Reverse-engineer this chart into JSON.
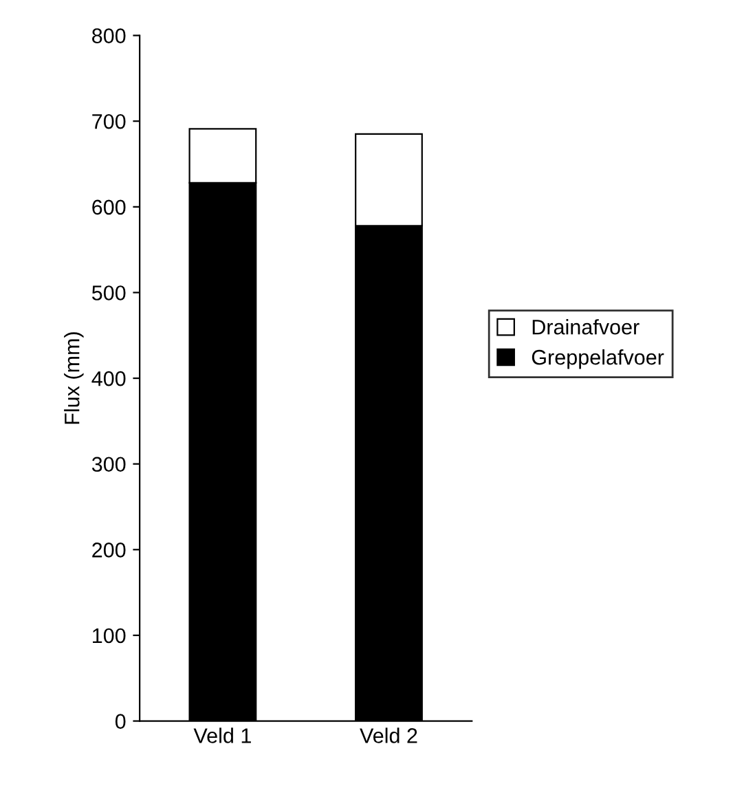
{
  "chart_data": {
    "type": "bar",
    "stacked": true,
    "ylabel": "Flux (mm)",
    "categories": [
      "Veld 1",
      "Veld 2"
    ],
    "series": [
      {
        "name": "Greppelafvoer",
        "color": "#000000",
        "values": [
          628,
          578
        ]
      },
      {
        "name": "Drainafvoer",
        "color": "#ffffff",
        "values": [
          63,
          107
        ]
      }
    ],
    "ylim": [
      0,
      800
    ],
    "yticks": [
      0,
      100,
      200,
      300,
      400,
      500,
      600,
      700,
      800
    ],
    "grid": false,
    "legend": "right"
  }
}
